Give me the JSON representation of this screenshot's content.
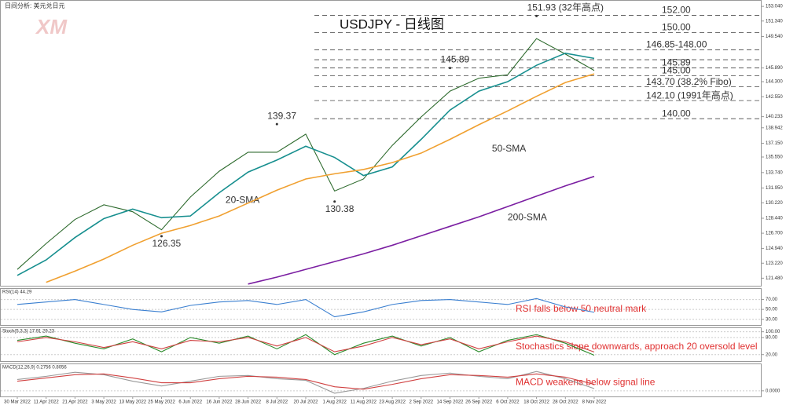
{
  "header": {
    "caption": "日间分析: 美元兑日元",
    "logo": "XM"
  },
  "chart_data": [
    {
      "type": "line",
      "title": "USDJPY - 日线图",
      "categories": [
        "30 Mar 2022",
        "11 Apr 2022",
        "21 Apr 2022",
        "3 May 2022",
        "13 May 2022",
        "25 May 2022",
        "6 Jun 2022",
        "16 Jun 2022",
        "28 Jun 2022",
        "8 Jul 2022",
        "20 Jul 2022",
        "1 Aug 2022",
        "11 Aug 2022",
        "23 Aug 2022",
        "2 Sep 2022",
        "14 Sep 2022",
        "26 Sep 2022",
        "6 Oct 2022",
        "18 Oct 2022",
        "28 Oct 2022",
        "8 Nov 2022"
      ],
      "series": [
        {
          "color": "#2d6a2d",
          "values": [
            122.5,
            125.5,
            128.3,
            130.0,
            129.2,
            127.1,
            130.9,
            133.9,
            136.1,
            136.1,
            138.2,
            131.6,
            133.0,
            136.9,
            140.2,
            143.2,
            144.7,
            145.1,
            149.3,
            147.5,
            145.6
          ]
        },
        {
          "name": "20-SMA",
          "color": "#178f8f",
          "values": [
            121.8,
            123.6,
            126.2,
            128.4,
            129.5,
            128.5,
            128.7,
            131.4,
            133.8,
            135.2,
            136.8,
            135.5,
            133.4,
            134.4,
            137.6,
            141.0,
            143.2,
            144.3,
            146.2,
            147.6,
            147.0
          ]
        },
        {
          "name": "50-SMA",
          "color": "#f0a030",
          "values": [
            null,
            121.0,
            122.3,
            123.7,
            125.3,
            126.7,
            127.6,
            128.7,
            130.2,
            131.7,
            133.0,
            133.6,
            134.1,
            134.9,
            136.0,
            137.6,
            139.3,
            140.9,
            142.6,
            144.2,
            145.2
          ]
        },
        {
          "name": "200-SMA",
          "color": "#7b1fa2",
          "values": [
            null,
            null,
            null,
            null,
            null,
            null,
            null,
            null,
            120.8,
            121.6,
            122.5,
            123.4,
            124.3,
            125.3,
            126.4,
            127.5,
            128.6,
            129.8,
            131.0,
            132.2,
            133.3
          ]
        }
      ],
      "levels": [
        {
          "label": "152.00",
          "value": [
            152.0
          ],
          "color": "#e03030"
        },
        {
          "label": "150.00",
          "value": [
            150.0
          ],
          "color": "#e03030"
        },
        {
          "label": "146.85-148.00",
          "value": [
            146.85,
            148.0
          ],
          "color": "#e03030"
        },
        {
          "label": "145.89",
          "value": [
            145.89
          ],
          "color": "#e03030"
        },
        {
          "label": "145.00",
          "value": [
            145.0
          ],
          "color": "#2a9a2a"
        },
        {
          "label": "143.70 (38.2% Fibo)",
          "value": [
            143.7
          ],
          "color": "#2a9a2a"
        },
        {
          "label": "142.10 (1991年高点)",
          "value": [
            142.1
          ],
          "color": "#2a9a2a"
        },
        {
          "label": "140.00",
          "value": [
            140.0
          ],
          "color": "#2a9a2a"
        }
      ],
      "peaks": [
        {
          "label": "151.93 (32年高点)",
          "value": 151.93,
          "category": "18 Oct 2022"
        },
        {
          "label": "145.89",
          "value": 145.89,
          "category": "14 Sep 2022"
        },
        {
          "label": "139.37",
          "value": 139.37,
          "category": "8 Jul 2022"
        },
        {
          "label": "130.38",
          "value": 130.38,
          "category": "1 Aug 2022"
        },
        {
          "label": "126.35",
          "value": 126.35,
          "category": "25 May 2022"
        }
      ],
      "ylim": [
        120.6,
        153.6
      ],
      "yticks": [
        {
          "value": 153.04,
          "label": "153.040"
        },
        {
          "value": 151.34,
          "label": "151.340"
        },
        {
          "value": 149.54,
          "label": "149.540"
        },
        {
          "value": 145.89,
          "label": "145.890"
        },
        {
          "value": 144.3,
          "label": "144.300"
        },
        {
          "value": 142.55,
          "label": "142.550"
        },
        {
          "value": 140.233,
          "label": "140.233"
        },
        {
          "value": 138.942,
          "label": "138.942"
        },
        {
          "value": 137.15,
          "label": "137.150"
        },
        {
          "value": 135.55,
          "label": "135.550"
        },
        {
          "value": 133.74,
          "label": "133.740"
        },
        {
          "value": 131.95,
          "label": "131.950"
        },
        {
          "value": 130.22,
          "label": "130.220"
        },
        {
          "value": 128.44,
          "label": "128.440"
        },
        {
          "value": 126.7,
          "label": "126.700"
        },
        {
          "value": 124.94,
          "label": "124.940"
        },
        {
          "value": 123.22,
          "label": "123.220"
        },
        {
          "value": 121.48,
          "label": "121.480"
        }
      ]
    },
    {
      "type": "line",
      "title": "RSI(14) 44.29",
      "annotation": "RSI falls below 50 neutral mark",
      "series": [
        {
          "color": "#3a7fd0",
          "values": [
            60,
            65,
            70,
            60,
            50,
            45,
            58,
            65,
            68,
            60,
            70,
            35,
            45,
            60,
            68,
            70,
            65,
            60,
            72,
            55,
            44.29
          ]
        }
      ],
      "ylim": [
        20,
        90
      ],
      "yticks": [
        {
          "value": 70,
          "label": "70.00"
        },
        {
          "value": 50,
          "label": "50.00"
        },
        {
          "value": 30,
          "label": "30.00"
        }
      ]
    },
    {
      "type": "line",
      "title": "Stoch(5,3,3) 17.91 29.23",
      "annotation": "Stochastics slope downwards, approach 20 oversold level",
      "series": [
        {
          "color": "#2a8a2a",
          "values": [
            70,
            85,
            60,
            40,
            75,
            30,
            80,
            60,
            85,
            40,
            90,
            20,
            60,
            85,
            50,
            80,
            30,
            70,
            90,
            60,
            17.91
          ]
        },
        {
          "color": "#d04040",
          "values": [
            65,
            80,
            65,
            45,
            65,
            40,
            70,
            65,
            80,
            50,
            80,
            30,
            50,
            80,
            55,
            75,
            40,
            65,
            85,
            65,
            29.23
          ]
        }
      ],
      "ylim": [
        0,
        110
      ],
      "yticks": [
        {
          "value": 100,
          "label": "100.00"
        },
        {
          "value": 80,
          "label": "80.00"
        },
        {
          "value": 20,
          "label": "20.00"
        }
      ]
    },
    {
      "type": "line",
      "title": "MACD(12,26,9) 0.2756 0.8056",
      "annotation": "MACD weakens below signal line",
      "series": [
        {
          "color": "#999999",
          "values": [
            1.4,
            1.8,
            2.3,
            2.0,
            1.2,
            0.6,
            1.2,
            1.8,
            1.9,
            1.5,
            1.3,
            -0.3,
            0.3,
            1.2,
            1.9,
            2.2,
            1.8,
            1.5,
            2.4,
            1.5,
            0.2756
          ]
        },
        {
          "color": "#d04040",
          "values": [
            1.2,
            1.6,
            2.0,
            2.1,
            1.6,
            1.0,
            1.0,
            1.5,
            1.8,
            1.7,
            1.4,
            0.5,
            0.2,
            0.8,
            1.5,
            2.0,
            1.9,
            1.7,
            2.1,
            1.7,
            0.8056
          ]
        }
      ],
      "ylim": [
        -0.6,
        3.2
      ],
      "yticks": [
        {
          "value": 0,
          "label": "0.0000"
        }
      ]
    }
  ]
}
